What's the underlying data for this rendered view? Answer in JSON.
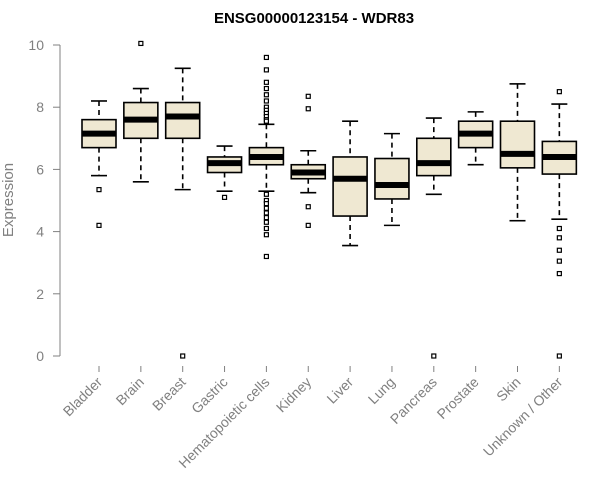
{
  "chart_data": {
    "type": "boxplot",
    "title": "ENSG00000123154 - WDR83",
    "ylabel": "Expression",
    "xlabel": "",
    "ylim": [
      0,
      10
    ],
    "yticks": [
      0,
      2,
      4,
      6,
      8,
      10
    ],
    "grid": false,
    "box_fill": "#efe8d2",
    "categories": [
      "Bladder",
      "Brain",
      "Breast",
      "Gastric",
      "Hematopoietic cells",
      "Kidney",
      "Liver",
      "Lung",
      "Pancreas",
      "Prostate",
      "Skin",
      "Unknown / Other"
    ],
    "boxes": [
      {
        "low": 5.8,
        "q1": 6.7,
        "median": 7.15,
        "q3": 7.6,
        "high": 8.2,
        "outliers": [
          5.35,
          4.2
        ]
      },
      {
        "low": 5.6,
        "q1": 7.0,
        "median": 7.6,
        "q3": 8.15,
        "high": 8.6,
        "outliers": [
          10.05
        ]
      },
      {
        "low": 5.35,
        "q1": 7.0,
        "median": 7.7,
        "q3": 8.15,
        "high": 9.25,
        "outliers": [
          0.0
        ]
      },
      {
        "low": 5.3,
        "q1": 5.9,
        "median": 6.2,
        "q3": 6.4,
        "high": 6.75,
        "outliers": [
          5.1
        ]
      },
      {
        "low": 5.3,
        "q1": 6.15,
        "median": 6.4,
        "q3": 6.7,
        "high": 7.45,
        "outliers": [
          9.6,
          9.2,
          8.8,
          8.6,
          8.4,
          8.2,
          8.0,
          7.9,
          7.8,
          7.7,
          7.6,
          7.55,
          5.2,
          5.0,
          4.9,
          4.75,
          4.6,
          4.45,
          4.3,
          4.1,
          3.9,
          3.2
        ]
      },
      {
        "low": 5.25,
        "q1": 5.7,
        "median": 5.9,
        "q3": 6.15,
        "high": 6.6,
        "outliers": [
          8.35,
          7.95,
          4.8,
          4.2
        ]
      },
      {
        "low": 3.55,
        "q1": 4.5,
        "median": 5.7,
        "q3": 6.4,
        "high": 7.55,
        "outliers": []
      },
      {
        "low": 4.2,
        "q1": 5.05,
        "median": 5.5,
        "q3": 6.35,
        "high": 7.15,
        "outliers": []
      },
      {
        "low": 5.2,
        "q1": 5.8,
        "median": 6.2,
        "q3": 7.0,
        "high": 7.65,
        "outliers": [
          0.0
        ]
      },
      {
        "low": 6.15,
        "q1": 6.7,
        "median": 7.15,
        "q3": 7.55,
        "high": 7.85,
        "outliers": []
      },
      {
        "low": 4.35,
        "q1": 6.05,
        "median": 6.5,
        "q3": 7.55,
        "high": 8.75,
        "outliers": []
      },
      {
        "low": 4.4,
        "q1": 5.85,
        "median": 6.4,
        "q3": 6.9,
        "high": 8.1,
        "outliers": [
          8.5,
          4.1,
          3.8,
          3.4,
          3.05,
          2.65,
          0.0
        ]
      }
    ]
  }
}
